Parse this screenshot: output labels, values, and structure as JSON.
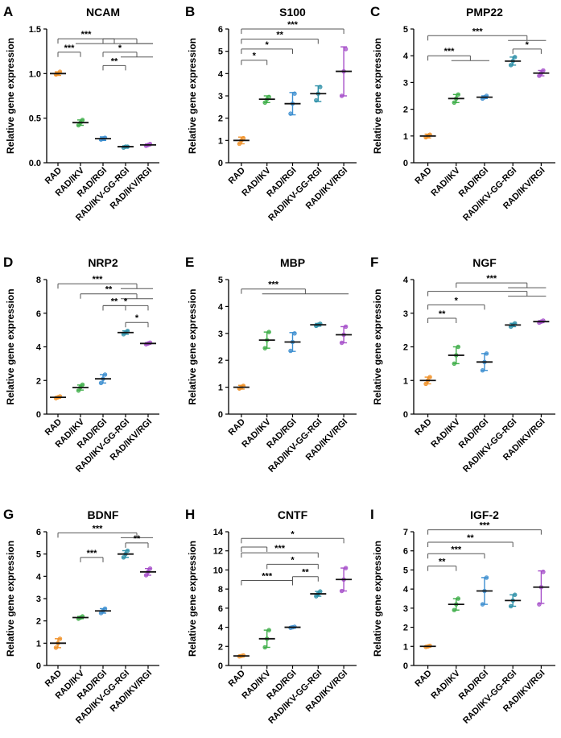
{
  "colors": {
    "RAD": "#f0922a",
    "RAD/IKV": "#3fae49",
    "RAD/RGI": "#3d8fd0",
    "RAD/IKV-GG-RGI": "#2d90a8",
    "RAD/IKV/RGI": "#a64fc9",
    "axis": "#000000",
    "bracket": "#555555",
    "error_bar": "#333333"
  },
  "chart_data": [
    {
      "type": "scatter",
      "panel_letter": "A",
      "title": "NCAM",
      "ylabel": "Relative gene expression",
      "categories": [
        "RAD",
        "RAD/IKV",
        "RAD/RGI",
        "RAD/IKV-GG-RGI",
        "RAD/IKV/RGI"
      ],
      "ylim": [
        0,
        1.5
      ],
      "yticks": [
        "0.0",
        "0.5",
        "1.0",
        "1.5"
      ],
      "means": [
        1.0,
        0.45,
        0.27,
        0.18,
        0.2
      ],
      "errors": [
        0.02,
        0.03,
        0.02,
        0.01,
        0.01
      ],
      "points": [
        [
          0.99,
          1.0,
          1.02
        ],
        [
          0.42,
          0.45,
          0.48
        ],
        [
          0.26,
          0.27,
          0.28
        ],
        [
          0.17,
          0.18,
          0.18
        ],
        [
          0.19,
          0.2,
          0.21
        ]
      ],
      "brackets": [
        {
          "from": 0,
          "to": [
            1,
            2,
            3,
            4
          ],
          "level": 1.39,
          "label": "***"
        },
        {
          "from": 2,
          "to": [
            3,
            4
          ],
          "level": 1.39,
          "label": ""
        },
        {
          "from": 0,
          "to": [
            1
          ],
          "level": 1.24,
          "label": "***"
        },
        {
          "from": 2,
          "to": [
            3,
            4
          ],
          "level": 1.24,
          "label": "*"
        },
        {
          "from": 2,
          "to": [
            3
          ],
          "level": 1.09,
          "label": "**"
        }
      ]
    },
    {
      "type": "scatter",
      "panel_letter": "B",
      "title": "S100",
      "ylabel": "Relative gene expression",
      "categories": [
        "RAD",
        "RAD/IKV",
        "RAD/RGI",
        "RAD/IKV-GG-RGI",
        "RAD/IKV/RGI"
      ],
      "ylim": [
        0,
        6
      ],
      "yticks": [
        "0",
        "1",
        "2",
        "3",
        "4",
        "5",
        "6"
      ],
      "means": [
        1.0,
        2.85,
        2.65,
        3.1,
        4.1
      ],
      "errors": [
        0.15,
        0.15,
        0.5,
        0.35,
        1.1
      ],
      "points": [
        [
          0.85,
          1.0,
          1.1
        ],
        [
          2.7,
          2.85,
          2.95
        ],
        [
          2.2,
          2.65,
          3.1
        ],
        [
          2.8,
          3.1,
          3.4
        ],
        [
          3.0,
          4.1,
          5.1
        ]
      ],
      "brackets": [
        {
          "from": 0,
          "to": [
            1
          ],
          "level": 4.6,
          "label": "*"
        },
        {
          "from": 0,
          "to": [
            2
          ],
          "level": 5.1,
          "label": "*"
        },
        {
          "from": 0,
          "to": [
            3
          ],
          "level": 5.55,
          "label": "**"
        },
        {
          "from": 0,
          "to": [
            4
          ],
          "level": 6.0,
          "label": "***"
        }
      ]
    },
    {
      "type": "scatter",
      "panel_letter": "C",
      "title": "PMP22",
      "ylabel": "Relative gene expression",
      "categories": [
        "RAD",
        "RAD/IKV",
        "RAD/RGI",
        "RAD/IKV-GG-RGI",
        "RAD/IKV/RGI"
      ],
      "ylim": [
        0,
        5
      ],
      "yticks": [
        "0",
        "1",
        "2",
        "3",
        "4",
        "5"
      ],
      "means": [
        1.0,
        2.4,
        2.45,
        3.8,
        3.35
      ],
      "errors": [
        0.07,
        0.15,
        0.05,
        0.15,
        0.1
      ],
      "points": [
        [
          0.95,
          1.0,
          1.05
        ],
        [
          2.25,
          2.4,
          2.55
        ],
        [
          2.4,
          2.45,
          2.5
        ],
        [
          3.65,
          3.8,
          3.95
        ],
        [
          3.25,
          3.35,
          3.45
        ]
      ],
      "brackets": [
        {
          "from": 0,
          "to": [
            1,
            2
          ],
          "level": 4.0,
          "label": "***"
        },
        {
          "from": 0,
          "to": [
            3,
            4
          ],
          "level": 4.75,
          "label": "***"
        },
        {
          "from": 3,
          "to": [
            4
          ],
          "level": 4.25,
          "label": "*"
        }
      ]
    },
    {
      "type": "scatter",
      "panel_letter": "D",
      "title": "NRP2",
      "ylabel": "Relative gene expression",
      "categories": [
        "RAD",
        "RAD/IKV",
        "RAD/RGI",
        "RAD/IKV-GG-RGI",
        "RAD/IKV/RGI"
      ],
      "ylim": [
        0,
        8
      ],
      "yticks": [
        "0",
        "2",
        "4",
        "6",
        "8"
      ],
      "means": [
        1.0,
        1.58,
        2.1,
        4.85,
        4.2
      ],
      "errors": [
        0.05,
        0.15,
        0.25,
        0.1,
        0.05
      ],
      "points": [
        [
          0.95,
          1.0,
          1.05
        ],
        [
          1.4,
          1.6,
          1.75
        ],
        [
          1.85,
          2.1,
          2.35
        ],
        [
          4.75,
          4.85,
          4.95
        ],
        [
          4.15,
          4.2,
          4.25
        ]
      ],
      "brackets": [
        {
          "from": 0,
          "to": [
            3,
            4
          ],
          "level": 7.75,
          "label": "***"
        },
        {
          "from": 1,
          "to": [
            3,
            4
          ],
          "level": 7.15,
          "label": "**"
        },
        {
          "from": 2,
          "to": [
            3
          ],
          "level": 6.45,
          "label": "**"
        },
        {
          "from": 2,
          "to": [
            4
          ],
          "level": 6.45,
          "label": "*"
        },
        {
          "from": 3,
          "to": [
            4
          ],
          "level": 5.45,
          "label": "*"
        }
      ]
    },
    {
      "type": "scatter",
      "panel_letter": "E",
      "title": "MBP",
      "ylabel": "Relative gene expression",
      "categories": [
        "RAD",
        "RAD/IKV",
        "RAD/RGI",
        "RAD/IKV-GG-RGI",
        "RAD/IKV/RGI"
      ],
      "ylim": [
        0,
        5
      ],
      "yticks": [
        "0",
        "1",
        "2",
        "3",
        "4",
        "5"
      ],
      "means": [
        1.0,
        2.75,
        2.68,
        3.32,
        2.95
      ],
      "errors": [
        0.07,
        0.3,
        0.35,
        0.05,
        0.3
      ],
      "points": [
        [
          0.95,
          1.0,
          1.05
        ],
        [
          2.45,
          2.75,
          3.05
        ],
        [
          2.35,
          2.68,
          3.0
        ],
        [
          3.28,
          3.32,
          3.36
        ],
        [
          2.65,
          2.95,
          3.25
        ]
      ],
      "brackets": [
        {
          "from": 0,
          "to": [
            1,
            2,
            3,
            4
          ],
          "level": 4.65,
          "label": "***"
        }
      ]
    },
    {
      "type": "scatter",
      "panel_letter": "F",
      "title": "NGF",
      "ylabel": "Relative gene expression",
      "categories": [
        "RAD",
        "RAD/IKV",
        "RAD/RGI",
        "RAD/IKV-GG-RGI",
        "RAD/IKV/RGI"
      ],
      "ylim": [
        0,
        4
      ],
      "yticks": [
        "0",
        "1",
        "2",
        "3",
        "4"
      ],
      "means": [
        1.0,
        1.75,
        1.55,
        2.65,
        2.75
      ],
      "errors": [
        0.1,
        0.25,
        0.25,
        0.05,
        0.03
      ],
      "points": [
        [
          0.9,
          1.0,
          1.1
        ],
        [
          1.5,
          1.75,
          2.0
        ],
        [
          1.3,
          1.55,
          1.8
        ],
        [
          2.6,
          2.65,
          2.7
        ],
        [
          2.72,
          2.75,
          2.78
        ]
      ],
      "brackets": [
        {
          "from": 0,
          "to": [
            1
          ],
          "level": 2.85,
          "label": "**"
        },
        {
          "from": 0,
          "to": [
            2
          ],
          "level": 3.25,
          "label": "*"
        },
        {
          "from": 0,
          "to": [
            3,
            4
          ],
          "level": 3.65,
          "label": ""
        },
        {
          "from": 1,
          "to": [
            3,
            4
          ],
          "level": 3.9,
          "label": "***"
        }
      ]
    },
    {
      "type": "scatter",
      "panel_letter": "G",
      "title": "BDNF",
      "ylabel": "Relative gene expression",
      "categories": [
        "RAD",
        "RAD/IKV",
        "RAD/RGI",
        "RAD/IKV-GG-RGI",
        "RAD/IKV/RGI"
      ],
      "ylim": [
        0,
        6
      ],
      "yticks": [
        "0",
        "1",
        "2",
        "3",
        "4",
        "5",
        "6"
      ],
      "means": [
        1.0,
        2.15,
        2.45,
        5.0,
        4.2
      ],
      "errors": [
        0.2,
        0.05,
        0.1,
        0.15,
        0.15
      ],
      "points": [
        [
          0.8,
          1.0,
          1.2
        ],
        [
          2.1,
          2.15,
          2.2
        ],
        [
          2.35,
          2.45,
          2.55
        ],
        [
          4.85,
          5.0,
          5.15
        ],
        [
          4.05,
          4.2,
          4.35
        ]
      ],
      "brackets": [
        {
          "from": 0,
          "to": [
            3,
            4
          ],
          "level": 5.95,
          "label": "***"
        },
        {
          "from": 1,
          "to": [
            2
          ],
          "level": 4.85,
          "label": "***"
        },
        {
          "from": 3,
          "to": [
            4
          ],
          "level": 5.5,
          "label": "**"
        }
      ]
    },
    {
      "type": "scatter",
      "panel_letter": "H",
      "title": "CNTF",
      "ylabel": "Relative gene expression",
      "categories": [
        "RAD",
        "RAD/IKV",
        "RAD/RGI",
        "RAD/IKV-GG-RGI",
        "RAD/IKV/RGI"
      ],
      "ylim": [
        0,
        14
      ],
      "yticks": [
        "0",
        "2",
        "4",
        "6",
        "8",
        "10",
        "12",
        "14"
      ],
      "means": [
        1.0,
        2.8,
        4.0,
        7.5,
        9.0
      ],
      "errors": [
        0.05,
        0.9,
        0.05,
        0.25,
        1.2
      ],
      "points": [
        [
          0.95,
          1.0,
          1.05
        ],
        [
          1.9,
          2.8,
          3.7
        ],
        [
          3.95,
          4.0,
          4.05
        ],
        [
          7.25,
          7.5,
          7.75
        ],
        [
          7.8,
          9.0,
          10.2
        ]
      ],
      "brackets": [
        {
          "from": 0,
          "to": [
            1
          ],
          "level": 12.4,
          "label": ""
        },
        {
          "from": 0,
          "to": [
            4
          ],
          "level": 13.3,
          "label": "*"
        },
        {
          "from": 0,
          "to": [
            3
          ],
          "level": 11.8,
          "label": "***"
        },
        {
          "from": 1,
          "to": [
            3
          ],
          "level": 10.6,
          "label": "*"
        },
        {
          "from": 0,
          "to": [
            2
          ],
          "level": 8.9,
          "label": "***"
        },
        {
          "from": 2,
          "to": [
            3
          ],
          "level": 9.3,
          "label": "**"
        }
      ]
    },
    {
      "type": "scatter",
      "panel_letter": "I",
      "title": "IGF-2",
      "ylabel": "Relative gene expression",
      "categories": [
        "RAD",
        "RAD/IKV",
        "RAD/RGI",
        "RAD/IKV-GG-RGI",
        "RAD/IKV/RGI"
      ],
      "ylim": [
        0,
        7
      ],
      "yticks": [
        "0",
        "1",
        "2",
        "3",
        "4",
        "5",
        "6",
        "7"
      ],
      "means": [
        1.0,
        3.2,
        3.9,
        3.4,
        4.1
      ],
      "errors": [
        0.03,
        0.3,
        0.7,
        0.3,
        0.85
      ],
      "points": [
        [
          0.97,
          1.0,
          1.03
        ],
        [
          2.9,
          3.2,
          3.5
        ],
        [
          3.2,
          3.9,
          4.6
        ],
        [
          3.1,
          3.4,
          3.7
        ],
        [
          3.2,
          4.1,
          4.9
        ]
      ],
      "brackets": [
        {
          "from": 0,
          "to": [
            1
          ],
          "level": 5.2,
          "label": "**"
        },
        {
          "from": 0,
          "to": [
            2
          ],
          "level": 5.85,
          "label": "***"
        },
        {
          "from": 0,
          "to": [
            3
          ],
          "level": 6.45,
          "label": "**"
        },
        {
          "from": 0,
          "to": [
            4
          ],
          "level": 7.1,
          "label": "***"
        }
      ]
    }
  ]
}
